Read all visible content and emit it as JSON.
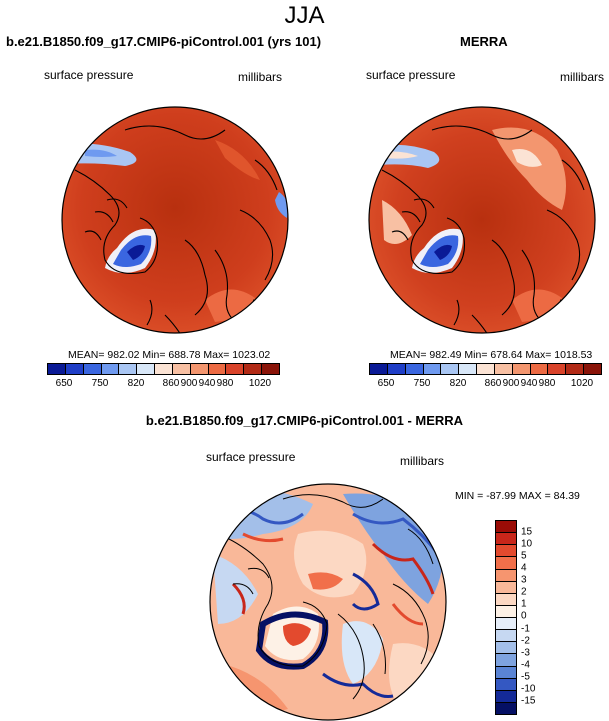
{
  "chart_data": [
    {
      "type": "heatmap",
      "title": "b.e21.B1850.f09_g17.CMIP6-piControl.001 (yrs 101)",
      "variable": "surface pressure",
      "units": "millibars",
      "projection": "north polar stereographic",
      "stats": {
        "mean": 982.02,
        "min": 688.78,
        "max": 1023.02
      },
      "stats_text": "MEAN= 982.02  Min= 688.78  Max= 1023.02",
      "legend_levels": [
        "650",
        "750",
        "820",
        "860",
        "900",
        "940",
        "980",
        "1020"
      ]
    },
    {
      "type": "heatmap",
      "title": "MERRA",
      "variable": "surface pressure",
      "units": "millibars",
      "projection": "north polar stereographic",
      "stats": {
        "mean": 982.49,
        "min": 678.64,
        "max": 1018.53
      },
      "stats_text": "MEAN= 982.49  Min= 678.64  Max= 1018.53",
      "legend_levels": [
        "650",
        "750",
        "820",
        "860",
        "900",
        "940",
        "980",
        "1020"
      ]
    },
    {
      "type": "heatmap",
      "title": "b.e21.B1850.f09_g17.CMIP6-piControl.001 - MERRA",
      "variable": "surface pressure",
      "units": "millibars",
      "projection": "north polar stereographic",
      "stats": {
        "min": -87.99,
        "max": 84.39
      },
      "stats_text": "MIN = -87.99 MAX =  84.39",
      "legend_levels": [
        "15",
        "10",
        "5",
        "4",
        "3",
        "2",
        "1",
        "0",
        "-1",
        "-2",
        "-3",
        "-4",
        "-5",
        "-10",
        "-15"
      ]
    }
  ],
  "season": "JJA",
  "colors": {
    "abs_scale": [
      "#0a1a96",
      "#1f3ec7",
      "#3a66e0",
      "#6f9af0",
      "#a9c6f3",
      "#d8e7f8",
      "#fbe3d4",
      "#f8c0a3",
      "#f3966f",
      "#ec6a43",
      "#d9432a",
      "#b22a16",
      "#8a1409"
    ],
    "diff_scale_top_to_bottom": [
      "#9a0c06",
      "#c8261a",
      "#e34a2e",
      "#f16f4a",
      "#f6956f",
      "#f9b899",
      "#fcd8c3",
      "#fdf1e6",
      "#e6eef9",
      "#c6d8f2",
      "#a3bfe9",
      "#7ea3df",
      "#5a84d4",
      "#3458c2",
      "#142a98",
      "#051064"
    ]
  }
}
